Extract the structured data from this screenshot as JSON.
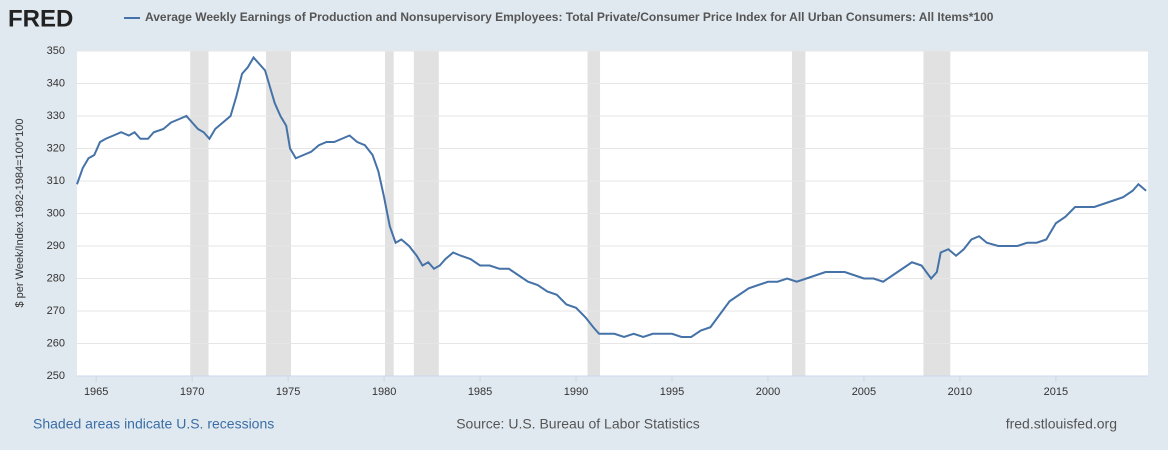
{
  "brand": "FRED",
  "chart_data": {
    "type": "line",
    "ylabel": "$ per Week/Index 1982-1984=100*100",
    "xlim": [
      1964,
      2019.8
    ],
    "ylim": [
      250,
      350
    ],
    "xticks": [
      1965,
      1970,
      1975,
      1980,
      1985,
      1990,
      1995,
      2000,
      2005,
      2010,
      2015
    ],
    "yticks": [
      250,
      260,
      270,
      280,
      290,
      300,
      310,
      320,
      330,
      340,
      350
    ],
    "grid": true,
    "recessions": [
      [
        1969.9,
        1970.85
      ],
      [
        1973.85,
        1975.15
      ],
      [
        1980.05,
        1980.5
      ],
      [
        1981.55,
        1982.85
      ],
      [
        1990.6,
        1991.25
      ],
      [
        2001.25,
        2001.95
      ],
      [
        2008.1,
        2009.5
      ]
    ],
    "recession_color": "#e1e1e1",
    "x": [
      1964.0,
      1964.3,
      1964.6,
      1964.9,
      1965.2,
      1965.5,
      1965.9,
      1966.3,
      1966.7,
      1967.0,
      1967.3,
      1967.7,
      1968.0,
      1968.5,
      1968.9,
      1969.3,
      1969.7,
      1970.0,
      1970.3,
      1970.6,
      1970.9,
      1971.2,
      1971.6,
      1972.0,
      1972.3,
      1972.6,
      1972.9,
      1973.2,
      1973.5,
      1973.8,
      1974.0,
      1974.3,
      1974.6,
      1974.9,
      1975.1,
      1975.4,
      1975.8,
      1976.2,
      1976.6,
      1977.0,
      1977.4,
      1977.8,
      1978.2,
      1978.6,
      1979.0,
      1979.4,
      1979.7,
      1980.0,
      1980.3,
      1980.6,
      1980.9,
      1981.3,
      1981.7,
      1982.0,
      1982.3,
      1982.6,
      1982.9,
      1983.2,
      1983.6,
      1984.0,
      1984.5,
      1985.0,
      1985.5,
      1986.0,
      1986.5,
      1987.0,
      1987.5,
      1988.0,
      1988.5,
      1989.0,
      1989.5,
      1990.0,
      1990.5,
      1990.9,
      1991.2,
      1991.6,
      1992.0,
      1992.5,
      1993.0,
      1993.5,
      1994.0,
      1994.5,
      1995.0,
      1995.5,
      1996.0,
      1996.5,
      1997.0,
      1997.5,
      1998.0,
      1998.5,
      1999.0,
      1999.5,
      2000.0,
      2000.5,
      2001.0,
      2001.5,
      2002.0,
      2002.5,
      2003.0,
      2003.5,
      2004.0,
      2004.5,
      2005.0,
      2005.5,
      2006.0,
      2006.5,
      2007.0,
      2007.5,
      2008.0,
      2008.5,
      2008.8,
      2009.0,
      2009.4,
      2009.8,
      2010.2,
      2010.6,
      2011.0,
      2011.4,
      2012.0,
      2012.5,
      2013.0,
      2013.5,
      2014.0,
      2014.5,
      2015.0,
      2015.5,
      2016.0,
      2016.5,
      2017.0,
      2017.5,
      2018.0,
      2018.5,
      2019.0,
      2019.3,
      2019.7
    ],
    "series": [
      {
        "name": "Average Weekly Earnings of Production and Nonsupervisory Employees: Total Private/Consumer Price Index for All Urban Consumers: All Items*100",
        "color": "#4572a7",
        "values": [
          309,
          314,
          317,
          318,
          322,
          323,
          324,
          325,
          324,
          325,
          323,
          323,
          325,
          326,
          328,
          329,
          330,
          328,
          326,
          325,
          323,
          326,
          328,
          330,
          336,
          343,
          345,
          348,
          346,
          344,
          340,
          334,
          330,
          327,
          320,
          317,
          318,
          319,
          321,
          322,
          322,
          323,
          324,
          322,
          321,
          318,
          313,
          305,
          296,
          291,
          292,
          290,
          287,
          284,
          285,
          283,
          284,
          286,
          288,
          287,
          286,
          284,
          284,
          283,
          283,
          281,
          279,
          278,
          276,
          275,
          272,
          271,
          268,
          265,
          263,
          263,
          263,
          262,
          263,
          262,
          263,
          263,
          263,
          262,
          262,
          264,
          265,
          269,
          273,
          275,
          277,
          278,
          279,
          279,
          280,
          279,
          280,
          281,
          282,
          282,
          282,
          281,
          280,
          280,
          279,
          281,
          283,
          285,
          284,
          280,
          282,
          288,
          289,
          287,
          289,
          292,
          293,
          291,
          290,
          290,
          290,
          291,
          291,
          292,
          297,
          299,
          302,
          302,
          302,
          303,
          304,
          305,
          307,
          309,
          307
        ]
      }
    ]
  },
  "footer": {
    "left": "Shaded areas indicate U.S. recessions",
    "center": "Source: U.S. Bureau of Labor Statistics",
    "right": "fred.stlouisfed.org"
  }
}
